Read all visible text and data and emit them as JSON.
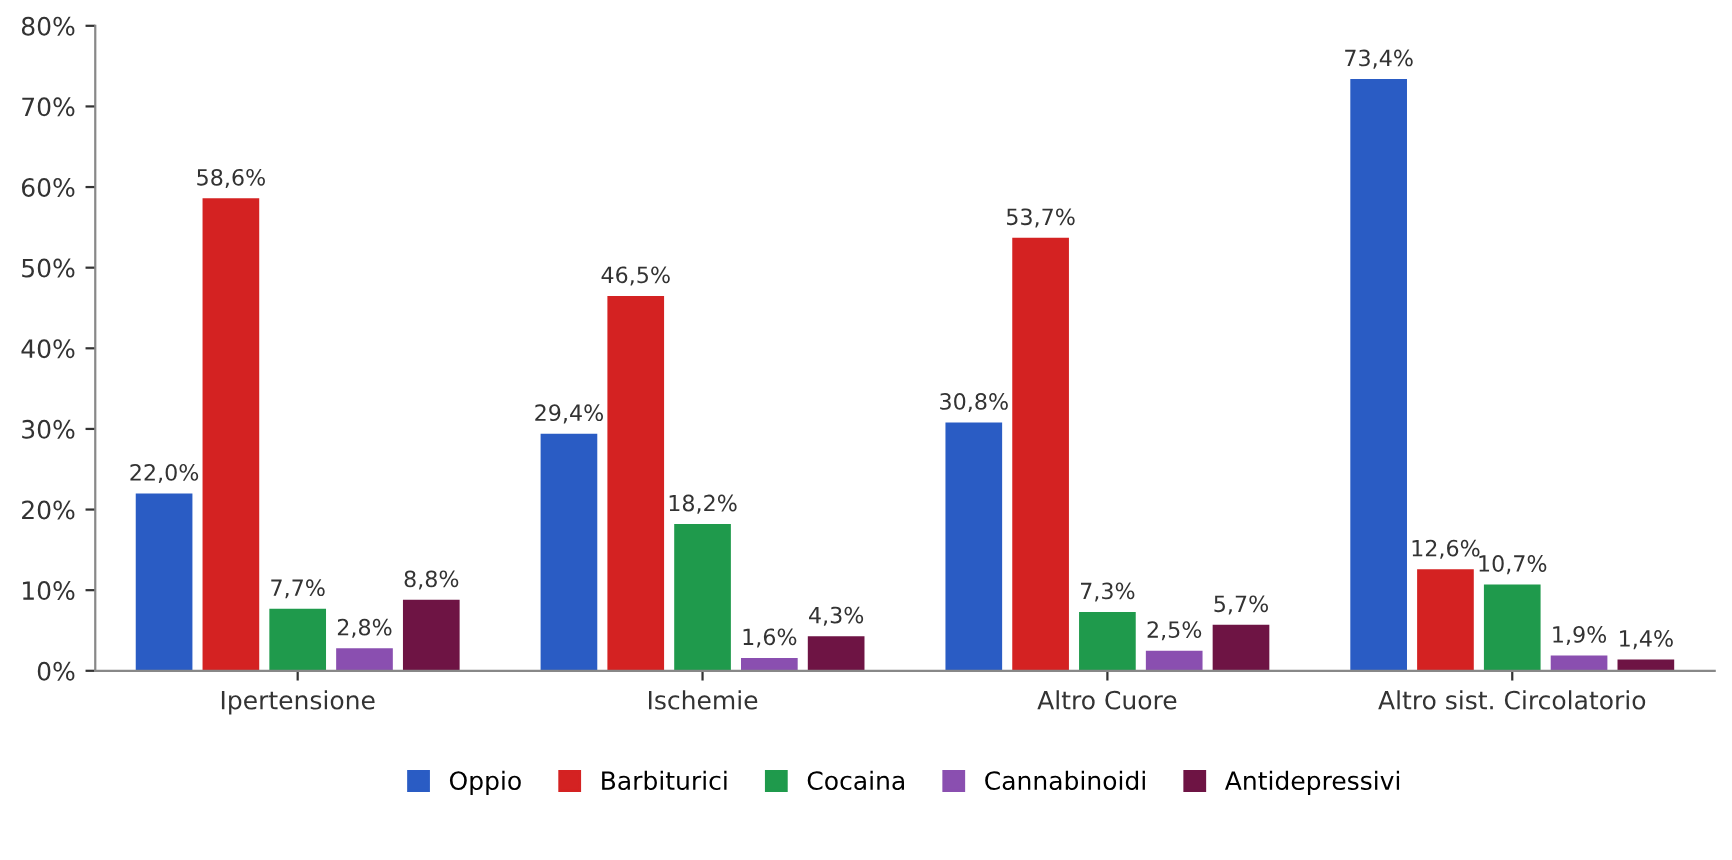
{
  "chart_data": {
    "type": "bar",
    "categories": [
      "Ipertensione",
      "Ischemie",
      "Altro Cuore",
      "Altro sist. Circolatorio"
    ],
    "series": [
      {
        "name": "Oppio",
        "color": "#2a5cc4",
        "values": [
          22.0,
          29.4,
          30.8,
          73.4
        ],
        "value_labels": [
          "22,0%",
          "29,4%",
          "30,8%",
          "73,4%"
        ]
      },
      {
        "name": "Barbiturici",
        "color": "#d42222",
        "values": [
          58.6,
          46.5,
          53.7,
          12.6
        ],
        "value_labels": [
          "58,6%",
          "46,5%",
          "53,7%",
          "12,6%"
        ]
      },
      {
        "name": "Cocaina",
        "color": "#1f9a4c",
        "values": [
          7.7,
          18.2,
          7.3,
          10.7
        ],
        "value_labels": [
          "7,7%",
          "18,2%",
          "7,3%",
          "10,7%"
        ]
      },
      {
        "name": "Cannabinoidi",
        "color": "#8a4fb0",
        "values": [
          2.8,
          1.6,
          2.5,
          1.9
        ],
        "value_labels": [
          "2,8%",
          "1,6%",
          "2,5%",
          "1,9%"
        ]
      },
      {
        "name": "Antidepressivi",
        "color": "#6e1444",
        "values": [
          8.8,
          4.3,
          5.7,
          1.4
        ],
        "value_labels": [
          "8,8%",
          "4,3%",
          "5,7%",
          "1,4%"
        ]
      }
    ],
    "ylim": [
      0,
      80
    ],
    "yticks": [
      {
        "value": 0,
        "label": "0%"
      },
      {
        "value": 10,
        "label": "10%"
      },
      {
        "value": 20,
        "label": "20%"
      },
      {
        "value": 30,
        "label": "30%"
      },
      {
        "value": 40,
        "label": "40%"
      },
      {
        "value": 50,
        "label": "50%"
      },
      {
        "value": 60,
        "label": "60%"
      },
      {
        "value": 70,
        "label": "70%"
      },
      {
        "value": 80,
        "label": "80%"
      }
    ],
    "grid": false,
    "legend": "bottom"
  }
}
